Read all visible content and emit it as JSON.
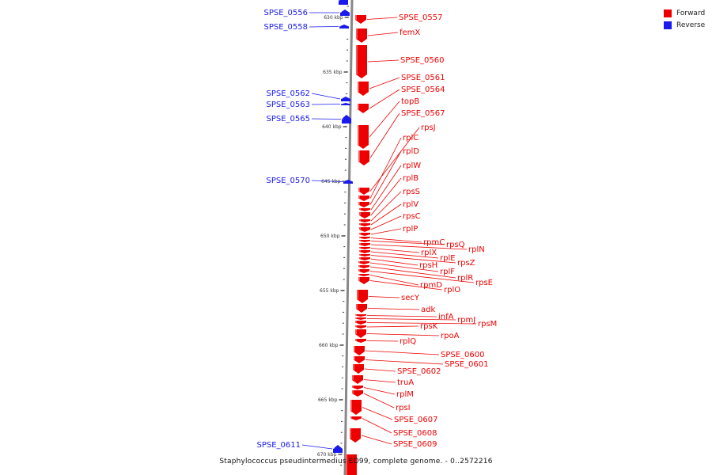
{
  "caption": "Staphylococcus pseudintermedius ED99, complete genome. - 0..2572216",
  "legend": {
    "forward_label": "Forward",
    "reverse_label": "Reverse",
    "forward_color": "#ee0000",
    "reverse_color": "#1a1aee"
  },
  "ruler": {
    "labels": [
      "630 kbp",
      "635 kbp",
      "640 kbp",
      "645 kbp",
      "650 kbp",
      "655 kbp",
      "660 kbp",
      "665 kbp",
      "670 kbp"
    ]
  },
  "genes": {
    "reverse": [
      "SPSE_0556",
      "SPSE_0558",
      "SPSE_0562",
      "SPSE_0563",
      "SPSE_0565",
      "SPSE_0570",
      "SPSE_0611"
    ],
    "forward": [
      "SPSE_0557",
      "femX",
      "SPSE_0560",
      "SPSE_0561",
      "SPSE_0564",
      "topB",
      "SPSE_0567",
      "rpsJ",
      "rplC",
      "rplD",
      "rplW",
      "rplB",
      "rpsS",
      "rplV",
      "rpsC",
      "rplP",
      "rpmC",
      "rpsQ",
      "rplN",
      "rplX",
      "rplE",
      "rpsZ",
      "rpsH",
      "rplF",
      "rplR",
      "rpsE",
      "rpmD",
      "rplO",
      "secY",
      "adk",
      "infA",
      "rpmJ",
      "rpsM",
      "rpsK",
      "rpoA",
      "rplQ",
      "SPSE_0600",
      "SPSE_0601",
      "SPSE_0602",
      "truA",
      "rplM",
      "rpsI",
      "SPSE_0607",
      "SPSE_0608",
      "SPSE_0609"
    ]
  }
}
